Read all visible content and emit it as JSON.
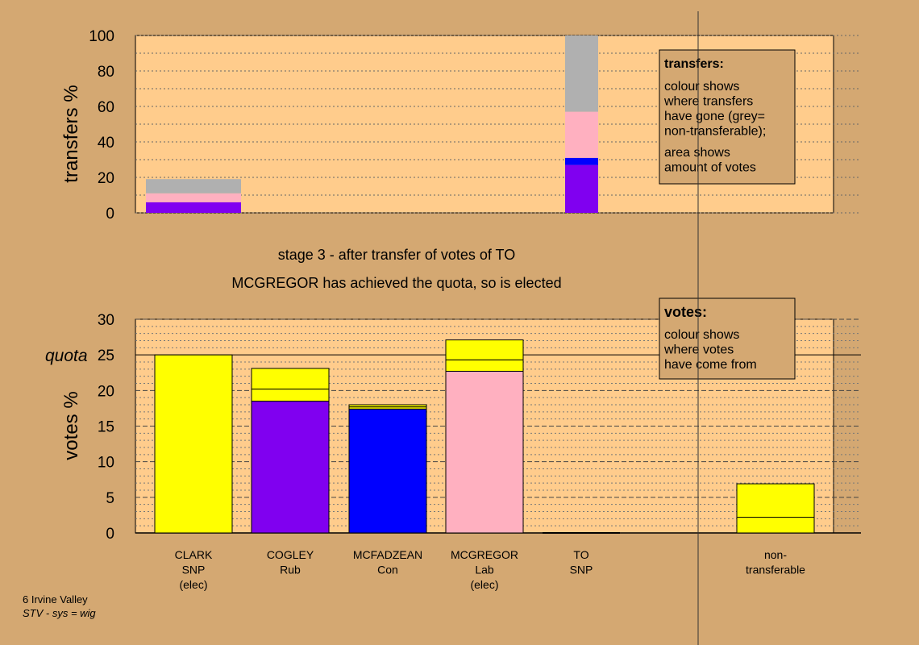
{
  "colors": {
    "background": "#d4a872",
    "plot_bg": "#ffcc8c",
    "SNP": "#ffff00",
    "Rub": "#8000f0",
    "Con": "#0000ff",
    "Lab": "#ffb0c0",
    "non_transferable": "#b0b0b0"
  },
  "stage_text": {
    "line1": "stage 3 - after transfer of votes of TO",
    "line2": "MCGREGOR has achieved the quota, so is elected"
  },
  "footer": {
    "line1": "6 Irvine Valley",
    "line2": "STV - sys = wig"
  },
  "chart_data": [
    {
      "type": "bar",
      "stacked": true,
      "ylabel": "transfers %",
      "ylim": [
        0,
        100
      ],
      "yticks": [
        "0",
        "20",
        "40",
        "60",
        "80",
        "100"
      ],
      "grid": true,
      "legend_box": {
        "title": "transfers:",
        "text1": [
          "colour shows",
          "where transfers",
          "have gone (grey=",
          "non-transferable);"
        ],
        "text2": [
          "area shows",
          "amount of votes"
        ]
      },
      "bars": [
        {
          "segments": [
            {
              "party": "Rub",
              "from": 0,
              "to": 6
            },
            {
              "party": "Lab",
              "from": 6,
              "to": 11
            },
            {
              "party": "non_transferable",
              "from": 11,
              "to": 19
            }
          ]
        },
        {
          "segments": [
            {
              "party": "Rub",
              "from": 0,
              "to": 27
            },
            {
              "party": "Con",
              "from": 27,
              "to": 31
            },
            {
              "party": "Lab",
              "from": 31,
              "to": 57
            },
            {
              "party": "non_transferable",
              "from": 57,
              "to": 100
            }
          ]
        }
      ]
    },
    {
      "type": "bar",
      "stacked": true,
      "ylabel": "votes %",
      "ylim": [
        0,
        30
      ],
      "yticks": [
        "0",
        "5",
        "10",
        "15",
        "20",
        "25",
        "30"
      ],
      "quota": {
        "label": "quota",
        "value": 25
      },
      "grid": true,
      "legend_box": {
        "title": "votes:",
        "text1": [
          "colour shows",
          "where votes",
          "have come from"
        ]
      },
      "categories": [
        {
          "lines": [
            "CLARK",
            "SNP",
            "(elec)"
          ],
          "segments": [
            {
              "party": "SNP",
              "from": 0,
              "to": 25
            }
          ]
        },
        {
          "lines": [
            "COGLEY",
            "Rub"
          ],
          "segments": [
            {
              "party": "Rub",
              "from": 0,
              "to": 18.5
            },
            {
              "party": "SNP",
              "from": 18.5,
              "to": 20.2
            },
            {
              "party": "SNP",
              "from": 20.2,
              "to": 23.1
            }
          ]
        },
        {
          "lines": [
            "MCFADZEAN",
            "Con"
          ],
          "segments": [
            {
              "party": "Con",
              "from": 0,
              "to": 17.4
            },
            {
              "party": "SNP",
              "from": 17.4,
              "to": 17.7
            },
            {
              "party": "SNP",
              "from": 17.7,
              "to": 18.0
            }
          ]
        },
        {
          "lines": [
            "MCGREGOR",
            "Lab",
            "(elec)"
          ],
          "segments": [
            {
              "party": "Lab",
              "from": 0,
              "to": 22.7
            },
            {
              "party": "SNP",
              "from": 22.7,
              "to": 24.3
            },
            {
              "party": "SNP",
              "from": 24.3,
              "to": 27.1
            }
          ]
        },
        {
          "lines": [
            "TO",
            "SNP"
          ],
          "segments": []
        },
        {
          "lines": [
            "non-",
            "transferable"
          ],
          "segments": [
            {
              "party": "SNP",
              "from": 0,
              "to": 2.2
            },
            {
              "party": "SNP",
              "from": 2.2,
              "to": 6.9
            }
          ]
        }
      ]
    }
  ]
}
